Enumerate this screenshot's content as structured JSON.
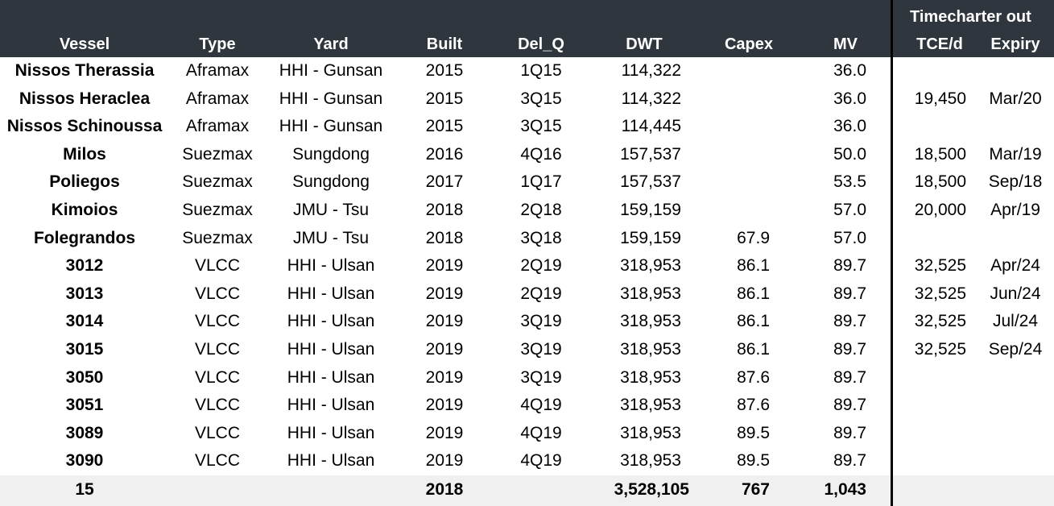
{
  "header": {
    "group_label": "Timecharter out",
    "columns": {
      "vessel": "Vessel",
      "type": "Type",
      "yard": "Yard",
      "built": "Built",
      "delq": "Del_Q",
      "dwt": "DWT",
      "capex": "Capex",
      "mv": "MV",
      "tce": "TCE/d",
      "expiry": "Expiry"
    }
  },
  "rows": [
    {
      "vessel": "Nissos Therassia",
      "type": "Aframax",
      "yard": "HHI - Gunsan",
      "built": "2015",
      "delq": "1Q15",
      "dwt": "114,322",
      "capex": "",
      "mv": "36.0",
      "tce": "",
      "expiry": ""
    },
    {
      "vessel": "Nissos Heraclea",
      "type": "Aframax",
      "yard": "HHI - Gunsan",
      "built": "2015",
      "delq": "3Q15",
      "dwt": "114,322",
      "capex": "",
      "mv": "36.0",
      "tce": "19,450",
      "expiry": "Mar/20"
    },
    {
      "vessel": "Nissos Schinoussa",
      "type": "Aframax",
      "yard": "HHI - Gunsan",
      "built": "2015",
      "delq": "3Q15",
      "dwt": "114,445",
      "capex": "",
      "mv": "36.0",
      "tce": "",
      "expiry": ""
    },
    {
      "vessel": "Milos",
      "type": "Suezmax",
      "yard": "Sungdong",
      "built": "2016",
      "delq": "4Q16",
      "dwt": "157,537",
      "capex": "",
      "mv": "50.0",
      "tce": "18,500",
      "expiry": "Mar/19"
    },
    {
      "vessel": "Poliegos",
      "type": "Suezmax",
      "yard": "Sungdong",
      "built": "2017",
      "delq": "1Q17",
      "dwt": "157,537",
      "capex": "",
      "mv": "53.5",
      "tce": "18,500",
      "expiry": "Sep/18"
    },
    {
      "vessel": "Kimoios",
      "type": "Suezmax",
      "yard": "JMU - Tsu",
      "built": "2018",
      "delq": "2Q18",
      "dwt": "159,159",
      "capex": "",
      "mv": "57.0",
      "tce": "20,000",
      "expiry": "Apr/19"
    },
    {
      "vessel": "Folegrandos",
      "type": "Suezmax",
      "yard": "JMU - Tsu",
      "built": "2018",
      "delq": "3Q18",
      "dwt": "159,159",
      "capex": "67.9",
      "mv": "57.0",
      "tce": "",
      "expiry": ""
    },
    {
      "vessel": "3012",
      "type": "VLCC",
      "yard": "HHI - Ulsan",
      "built": "2019",
      "delq": "2Q19",
      "dwt": "318,953",
      "capex": "86.1",
      "mv": "89.7",
      "tce": "32,525",
      "expiry": "Apr/24"
    },
    {
      "vessel": "3013",
      "type": "VLCC",
      "yard": "HHI - Ulsan",
      "built": "2019",
      "delq": "2Q19",
      "dwt": "318,953",
      "capex": "86.1",
      "mv": "89.7",
      "tce": "32,525",
      "expiry": "Jun/24"
    },
    {
      "vessel": "3014",
      "type": "VLCC",
      "yard": "HHI - Ulsan",
      "built": "2019",
      "delq": "3Q19",
      "dwt": "318,953",
      "capex": "86.1",
      "mv": "89.7",
      "tce": "32,525",
      "expiry": "Jul/24"
    },
    {
      "vessel": "3015",
      "type": "VLCC",
      "yard": "HHI - Ulsan",
      "built": "2019",
      "delq": "3Q19",
      "dwt": "318,953",
      "capex": "86.1",
      "mv": "89.7",
      "tce": "32,525",
      "expiry": "Sep/24"
    },
    {
      "vessel": "3050",
      "type": "VLCC",
      "yard": "HHI - Ulsan",
      "built": "2019",
      "delq": "3Q19",
      "dwt": "318,953",
      "capex": "87.6",
      "mv": "89.7",
      "tce": "",
      "expiry": ""
    },
    {
      "vessel": "3051",
      "type": "VLCC",
      "yard": "HHI - Ulsan",
      "built": "2019",
      "delq": "4Q19",
      "dwt": "318,953",
      "capex": "87.6",
      "mv": "89.7",
      "tce": "",
      "expiry": ""
    },
    {
      "vessel": "3089",
      "type": "VLCC",
      "yard": "HHI - Ulsan",
      "built": "2019",
      "delq": "4Q19",
      "dwt": "318,953",
      "capex": "89.5",
      "mv": "89.7",
      "tce": "",
      "expiry": ""
    },
    {
      "vessel": "3090",
      "type": "VLCC",
      "yard": "HHI - Ulsan",
      "built": "2019",
      "delq": "4Q19",
      "dwt": "318,953",
      "capex": "89.5",
      "mv": "89.7",
      "tce": "",
      "expiry": ""
    }
  ],
  "total": {
    "vessel": "15",
    "built": "2018",
    "dwt": "3,528,105",
    "capex": "767",
    "mv": "1,043"
  }
}
